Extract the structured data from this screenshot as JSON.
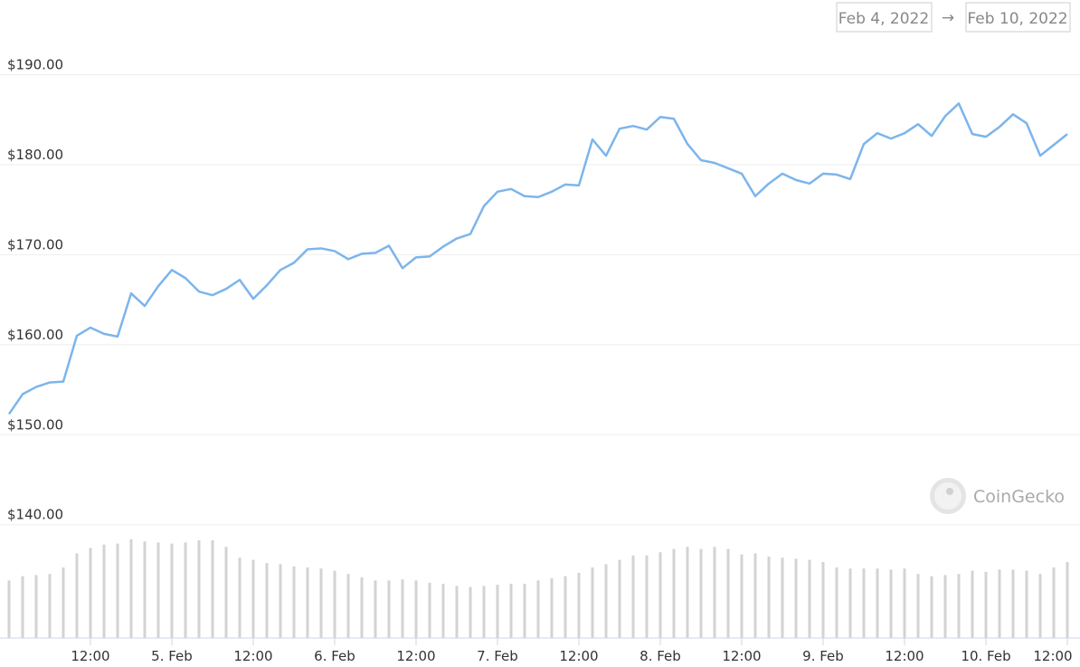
{
  "chart_data": {
    "type": "line",
    "date_from": "Feb 4, 2022",
    "separator": "→",
    "date_to": "Feb 10, 2022",
    "watermark": "CoinGecko",
    "categories": [
      null,
      null,
      null,
      null,
      null,
      null,
      "12:00",
      null,
      null,
      null,
      null,
      null,
      "5. Feb",
      null,
      null,
      null,
      null,
      null,
      "12:00",
      null,
      null,
      null,
      null,
      null,
      "6. Feb",
      null,
      null,
      null,
      null,
      null,
      "12:00",
      null,
      null,
      null,
      null,
      null,
      "7. Feb",
      null,
      null,
      null,
      null,
      null,
      "12:00",
      null,
      null,
      null,
      null,
      null,
      "8. Feb",
      null,
      null,
      null,
      null,
      null,
      "12:00",
      null,
      null,
      null,
      null,
      null,
      "9. Feb",
      null,
      null,
      null,
      null,
      null,
      "12:00",
      null,
      null,
      null,
      null,
      null,
      "10. Feb",
      null,
      null,
      null,
      null,
      null,
      "12:00"
    ],
    "series": [
      {
        "color": "#7cb5ec",
        "values": [
          152.3,
          154.5,
          155.3,
          155.8,
          155.9,
          161.0,
          161.9,
          161.2,
          160.9,
          165.7,
          164.3,
          166.5,
          168.3,
          167.4,
          165.9,
          165.5,
          166.2,
          167.2,
          165.1,
          166.6,
          168.3,
          169.1,
          170.6,
          170.7,
          170.4,
          169.5,
          170.1,
          170.2,
          171.0,
          168.5,
          169.7,
          169.8,
          170.9,
          171.8,
          172.3,
          175.4,
          177.0,
          177.3,
          176.5,
          176.4,
          177.0,
          177.8,
          177.7,
          182.8,
          181.0,
          184.0,
          184.3,
          183.9,
          185.3,
          185.1,
          182.3,
          180.5,
          180.2,
          179.6,
          179.0,
          176.5,
          177.9,
          179.0,
          178.3,
          177.9,
          179.0,
          178.9,
          178.4,
          182.3,
          183.5,
          182.9,
          183.5,
          184.5,
          183.2,
          185.4,
          186.8,
          183.4,
          183.1,
          184.2,
          185.6,
          184.6,
          181.0,
          182.2,
          183.4
        ]
      },
      {
        "color": "#d3d3d3",
        "axis": "y2",
        "values": [
          53,
          57,
          58,
          59,
          65,
          78,
          83,
          86,
          87,
          91,
          89,
          88,
          87,
          88,
          90,
          90,
          84,
          74,
          72,
          69,
          68,
          66,
          65,
          64,
          62,
          59,
          56,
          53,
          53,
          54,
          53,
          51,
          50,
          48,
          47,
          48,
          49,
          50,
          50,
          53,
          55,
          57,
          60,
          65,
          68,
          72,
          76,
          76,
          79,
          82,
          84,
          82,
          84,
          82,
          77,
          78,
          75,
          74,
          73,
          72,
          70,
          65,
          64,
          64,
          64,
          63,
          64,
          59,
          57,
          58,
          59,
          62,
          61,
          63,
          63,
          62,
          59,
          65,
          70
        ]
      }
    ],
    "ylim": [
      127.4,
      198.3
    ],
    "yticks": [
      {
        "value": 140,
        "label": "$140.00"
      },
      {
        "value": 150,
        "label": "$150.00"
      },
      {
        "value": 160,
        "label": "$160.00"
      },
      {
        "value": 170,
        "label": "$170.00"
      },
      {
        "value": 180,
        "label": "$180.00"
      },
      {
        "value": 190,
        "label": "$190.00"
      }
    ],
    "y2lim": [
      0,
      100
    ],
    "grid": true
  }
}
